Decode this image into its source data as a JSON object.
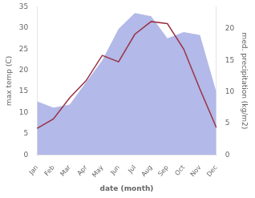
{
  "chart_data": {
    "type": "line",
    "xlabel": "date (month)",
    "ylabel": "max temp (C)",
    "y2label": "med. precipitation (kg/m2)",
    "categories": [
      "Jan",
      "Feb",
      "Mar",
      "Apr",
      "May",
      "Jun",
      "Jul",
      "Aug",
      "Sep",
      "Oct",
      "Nov",
      "Dec"
    ],
    "series": [
      {
        "type": "area",
        "axis": "y2",
        "color": "#b3b9e8",
        "values": [
          8.5,
          7.5,
          8.0,
          11.5,
          15.0,
          20.0,
          22.5,
          22.0,
          18.5,
          19.5,
          19.0,
          10.0
        ]
      },
      {
        "type": "line",
        "color": "#993344",
        "values": [
          6.3,
          8.5,
          13.5,
          17.5,
          23.5,
          22.0,
          28.5,
          31.5,
          31.0,
          25.0,
          15.5,
          6.5
        ]
      }
    ],
    "ylim": [
      0,
      35
    ],
    "yticks": [
      0,
      5,
      10,
      15,
      20,
      25,
      30,
      35
    ],
    "y2lim": [
      0,
      23.5
    ],
    "y2ticks": [
      0,
      5,
      10,
      15,
      20
    ],
    "grid": false
  }
}
